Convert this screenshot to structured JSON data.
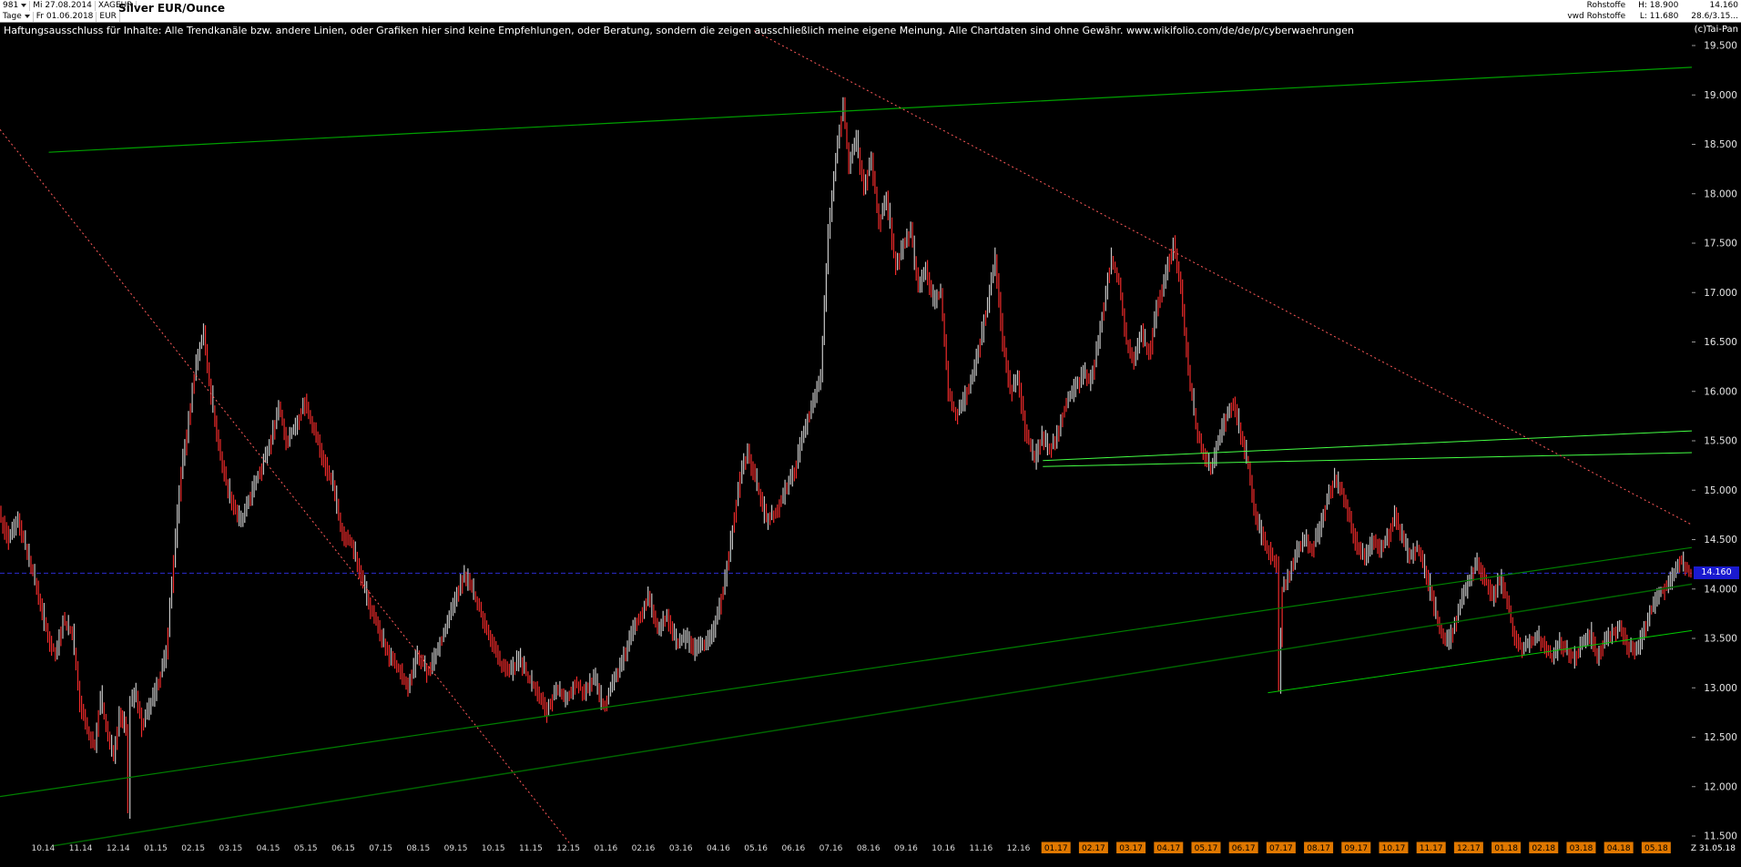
{
  "header": {
    "bar_count": "981",
    "date_start": "Mi 27.08.2014",
    "symbol": "XAGEUR",
    "title": "Silver EUR/Ounce",
    "period": "Tage",
    "date_end": "Fr 01.06.2018",
    "currency": "EUR",
    "group": "Rohstoffe",
    "feed": "vwd Rohstoffe",
    "high_label": "H: 18.900",
    "low_label": "L: 11.680",
    "last_value": "14.160",
    "change_value": "28.6/3.15..."
  },
  "watermark": "(c)Tai-Pan",
  "disclaimer": "Haftungsausschluss für Inhalte: Alle Trendkanäle bzw. andere Linien, oder Grafiken hier sind keine Empfehlungen, oder Beratung, sondern die zeigen ausschließlich meine eigene Meinung. Alle Chartdaten sind ohne Gewähr.  www.wikifolio.com/de/de/p/cyberwaehrungen",
  "chart_data": {
    "type": "line",
    "title": "Silver EUR/Ounce",
    "instrument": "XAGEUR",
    "period": "Tage",
    "date_range": [
      "27.08.2014",
      "31.05.2018"
    ],
    "high": 18.9,
    "low": 11.68,
    "last": 14.16,
    "last_price_label": "14.160",
    "ylim": [
      11.5,
      19.5
    ],
    "x_range": [
      0,
      45.1
    ],
    "x_unit": "months since 27.08.2014",
    "grid": "off",
    "y_axis": {
      "ticks": [
        {
          "value": 19.5,
          "label": "19.500"
        },
        {
          "value": 19.0,
          "label": "19.000"
        },
        {
          "value": 18.5,
          "label": "18.500"
        },
        {
          "value": 18.0,
          "label": "18.000"
        },
        {
          "value": 17.5,
          "label": "17.500"
        },
        {
          "value": 17.0,
          "label": "17.000"
        },
        {
          "value": 16.5,
          "label": "16.500"
        },
        {
          "value": 16.0,
          "label": "16.000"
        },
        {
          "value": 15.5,
          "label": "15.500"
        },
        {
          "value": 15.0,
          "label": "15.000"
        },
        {
          "value": 14.5,
          "label": "14.500"
        },
        {
          "value": 14.0,
          "label": "14.000"
        },
        {
          "value": 13.5,
          "label": "13.500"
        },
        {
          "value": 13.0,
          "label": "13.000"
        },
        {
          "value": 12.5,
          "label": "12.500"
        },
        {
          "value": 12.0,
          "label": "12.000"
        },
        {
          "value": 11.5,
          "label": "11.500"
        }
      ]
    },
    "x_axis": {
      "first_tick_m": 1.15,
      "step": 1,
      "highlight_from": 27,
      "labels": [
        "10.14",
        "11.14",
        "12.14",
        "01.15",
        "02.15",
        "03.15",
        "04.15",
        "05.15",
        "06.15",
        "07.15",
        "08.15",
        "09.15",
        "10.15",
        "11.15",
        "12.15",
        "01.16",
        "02.16",
        "03.16",
        "04.16",
        "05.16",
        "06.16",
        "07.16",
        "08.16",
        "09.16",
        "10.16",
        "11.16",
        "12.16",
        "01.17",
        "02.17",
        "03.17",
        "04.17",
        "05.17",
        "06.17",
        "07.17",
        "08.17",
        "09.17",
        "10.17",
        "11.17",
        "12.17",
        "01.18",
        "02.18",
        "03.18",
        "04.18",
        "05.18"
      ],
      "z_label": "Z  31.05.18"
    },
    "series": [
      {
        "name": "XAGEUR daily bars",
        "points": [
          [
            0.0,
            14.75
          ],
          [
            0.25,
            14.5
          ],
          [
            0.5,
            14.68
          ],
          [
            0.8,
            14.3
          ],
          [
            1.1,
            13.85
          ],
          [
            1.3,
            13.5
          ],
          [
            1.5,
            13.35
          ],
          [
            1.7,
            13.68
          ],
          [
            1.95,
            13.55
          ],
          [
            2.15,
            12.85
          ],
          [
            2.35,
            12.55
          ],
          [
            2.55,
            12.42
          ],
          [
            2.7,
            12.92
          ],
          [
            2.9,
            12.5
          ],
          [
            3.05,
            12.28
          ],
          [
            3.2,
            12.72
          ],
          [
            3.38,
            12.6
          ],
          [
            3.43,
            11.78
          ],
          [
            3.5,
            12.85
          ],
          [
            3.65,
            12.95
          ],
          [
            3.8,
            12.6
          ],
          [
            4.0,
            12.8
          ],
          [
            4.2,
            13.0
          ],
          [
            4.45,
            13.35
          ],
          [
            4.65,
            14.3
          ],
          [
            4.85,
            15.2
          ],
          [
            5.05,
            15.7
          ],
          [
            5.25,
            16.3
          ],
          [
            5.45,
            16.6
          ],
          [
            5.6,
            16.1
          ],
          [
            5.8,
            15.55
          ],
          [
            6.0,
            15.15
          ],
          [
            6.2,
            14.9
          ],
          [
            6.45,
            14.65
          ],
          [
            6.7,
            14.95
          ],
          [
            6.95,
            15.2
          ],
          [
            7.2,
            15.45
          ],
          [
            7.45,
            15.85
          ],
          [
            7.65,
            15.5
          ],
          [
            7.9,
            15.65
          ],
          [
            8.15,
            15.9
          ],
          [
            8.4,
            15.6
          ],
          [
            8.65,
            15.3
          ],
          [
            8.9,
            15.05
          ],
          [
            9.15,
            14.55
          ],
          [
            9.4,
            14.45
          ],
          [
            9.65,
            14.1
          ],
          [
            9.9,
            13.8
          ],
          [
            10.15,
            13.55
          ],
          [
            10.4,
            13.3
          ],
          [
            10.65,
            13.2
          ],
          [
            10.9,
            13.0
          ],
          [
            11.15,
            13.35
          ],
          [
            11.4,
            13.15
          ],
          [
            11.65,
            13.35
          ],
          [
            11.9,
            13.6
          ],
          [
            12.15,
            13.9
          ],
          [
            12.4,
            14.15
          ],
          [
            12.6,
            14.0
          ],
          [
            12.85,
            13.75
          ],
          [
            13.1,
            13.5
          ],
          [
            13.35,
            13.25
          ],
          [
            13.6,
            13.15
          ],
          [
            13.85,
            13.3
          ],
          [
            14.1,
            13.1
          ],
          [
            14.35,
            12.95
          ],
          [
            14.6,
            12.75
          ],
          [
            14.85,
            13.0
          ],
          [
            15.1,
            12.85
          ],
          [
            15.35,
            13.05
          ],
          [
            15.6,
            12.95
          ],
          [
            15.85,
            13.1
          ],
          [
            16.1,
            12.8
          ],
          [
            16.35,
            13.05
          ],
          [
            16.6,
            13.25
          ],
          [
            16.85,
            13.55
          ],
          [
            17.1,
            13.75
          ],
          [
            17.3,
            13.92
          ],
          [
            17.55,
            13.6
          ],
          [
            17.8,
            13.72
          ],
          [
            18.05,
            13.45
          ],
          [
            18.3,
            13.5
          ],
          [
            18.55,
            13.38
          ],
          [
            18.8,
            13.45
          ],
          [
            19.05,
            13.6
          ],
          [
            19.3,
            14.0
          ],
          [
            19.55,
            14.6
          ],
          [
            19.75,
            15.15
          ],
          [
            19.95,
            15.38
          ],
          [
            20.2,
            15.05
          ],
          [
            20.45,
            14.7
          ],
          [
            20.7,
            14.78
          ],
          [
            20.95,
            15.0
          ],
          [
            21.2,
            15.2
          ],
          [
            21.45,
            15.6
          ],
          [
            21.7,
            15.9
          ],
          [
            21.9,
            16.15
          ],
          [
            22.1,
            17.6
          ],
          [
            22.3,
            18.35
          ],
          [
            22.5,
            18.9
          ],
          [
            22.65,
            18.3
          ],
          [
            22.85,
            18.55
          ],
          [
            23.05,
            18.05
          ],
          [
            23.25,
            18.35
          ],
          [
            23.45,
            17.7
          ],
          [
            23.65,
            17.95
          ],
          [
            23.9,
            17.25
          ],
          [
            24.1,
            17.5
          ],
          [
            24.3,
            17.62
          ],
          [
            24.5,
            17.05
          ],
          [
            24.7,
            17.25
          ],
          [
            24.9,
            16.9
          ],
          [
            25.1,
            17.0
          ],
          [
            25.3,
            16.0
          ],
          [
            25.5,
            15.75
          ],
          [
            25.7,
            15.9
          ],
          [
            25.9,
            16.1
          ],
          [
            26.1,
            16.4
          ],
          [
            26.35,
            16.9
          ],
          [
            26.55,
            17.35
          ],
          [
            26.75,
            16.5
          ],
          [
            26.95,
            16.0
          ],
          [
            27.15,
            16.15
          ],
          [
            27.35,
            15.6
          ],
          [
            27.6,
            15.3
          ],
          [
            27.8,
            15.55
          ],
          [
            28.0,
            15.4
          ],
          [
            28.2,
            15.55
          ],
          [
            28.45,
            15.9
          ],
          [
            28.7,
            16.05
          ],
          [
            28.9,
            16.2
          ],
          [
            29.1,
            16.1
          ],
          [
            29.3,
            16.5
          ],
          [
            29.5,
            17.0
          ],
          [
            29.65,
            17.35
          ],
          [
            29.85,
            17.1
          ],
          [
            30.05,
            16.5
          ],
          [
            30.25,
            16.3
          ],
          [
            30.45,
            16.6
          ],
          [
            30.65,
            16.35
          ],
          [
            30.85,
            16.85
          ],
          [
            31.1,
            17.2
          ],
          [
            31.3,
            17.5
          ],
          [
            31.5,
            17.05
          ],
          [
            31.7,
            16.2
          ],
          [
            31.9,
            15.65
          ],
          [
            32.1,
            15.35
          ],
          [
            32.3,
            15.2
          ],
          [
            32.5,
            15.5
          ],
          [
            32.7,
            15.75
          ],
          [
            32.9,
            15.9
          ],
          [
            33.1,
            15.55
          ],
          [
            33.3,
            15.25
          ],
          [
            33.5,
            14.7
          ],
          [
            33.7,
            14.5
          ],
          [
            33.9,
            14.35
          ],
          [
            34.05,
            14.25
          ],
          [
            34.12,
            13.02
          ],
          [
            34.2,
            14.0
          ],
          [
            34.4,
            14.15
          ],
          [
            34.6,
            14.4
          ],
          [
            34.8,
            14.5
          ],
          [
            35.0,
            14.42
          ],
          [
            35.2,
            14.6
          ],
          [
            35.4,
            14.9
          ],
          [
            35.6,
            15.12
          ],
          [
            35.8,
            15.0
          ],
          [
            36.0,
            14.7
          ],
          [
            36.2,
            14.42
          ],
          [
            36.4,
            14.3
          ],
          [
            36.6,
            14.5
          ],
          [
            36.8,
            14.4
          ],
          [
            37.0,
            14.52
          ],
          [
            37.2,
            14.75
          ],
          [
            37.4,
            14.5
          ],
          [
            37.6,
            14.32
          ],
          [
            37.8,
            14.42
          ],
          [
            38.0,
            14.2
          ],
          [
            38.2,
            13.9
          ],
          [
            38.4,
            13.6
          ],
          [
            38.6,
            13.45
          ],
          [
            38.8,
            13.62
          ],
          [
            39.0,
            13.9
          ],
          [
            39.2,
            14.1
          ],
          [
            39.4,
            14.28
          ],
          [
            39.6,
            14.1
          ],
          [
            39.8,
            13.92
          ],
          [
            40.0,
            14.1
          ],
          [
            40.2,
            13.88
          ],
          [
            40.4,
            13.5
          ],
          [
            40.6,
            13.38
          ],
          [
            40.8,
            13.48
          ],
          [
            41.0,
            13.52
          ],
          [
            41.2,
            13.42
          ],
          [
            41.4,
            13.3
          ],
          [
            41.6,
            13.46
          ],
          [
            41.8,
            13.36
          ],
          [
            42.0,
            13.3
          ],
          [
            42.2,
            13.46
          ],
          [
            42.4,
            13.56
          ],
          [
            42.6,
            13.32
          ],
          [
            42.8,
            13.5
          ],
          [
            43.0,
            13.56
          ],
          [
            43.2,
            13.62
          ],
          [
            43.4,
            13.42
          ],
          [
            43.6,
            13.36
          ],
          [
            43.8,
            13.52
          ],
          [
            44.0,
            13.78
          ],
          [
            44.2,
            13.92
          ],
          [
            44.4,
            14.02
          ],
          [
            44.6,
            14.12
          ],
          [
            44.8,
            14.3
          ],
          [
            44.95,
            14.22
          ],
          [
            45.1,
            14.16
          ]
        ]
      }
    ],
    "trend_lines": [
      {
        "name": "upper-channel",
        "m1": 1.3,
        "p1": 18.42,
        "m2": 45.1,
        "p2": 19.28,
        "color": "#00a000",
        "width": 1.2
      },
      {
        "name": "long-support",
        "m1": 0,
        "p1": 11.9,
        "m2": 45.1,
        "p2": 14.42,
        "color": "#008000",
        "width": 1.2
      },
      {
        "name": "steep-support",
        "m1": 1.4,
        "p1": 11.4,
        "m2": 45.1,
        "p2": 14.05,
        "color": "#006400",
        "width": 1.5
      },
      {
        "name": "recent-support",
        "m1": 33.8,
        "p1": 12.95,
        "m2": 45.1,
        "p2": 13.58,
        "color": "#00c800",
        "width": 1
      },
      {
        "name": "light-resistance-1",
        "m1": 27.8,
        "p1": 15.3,
        "m2": 45.1,
        "p2": 15.6,
        "color": "#44ff44",
        "width": 1
      },
      {
        "name": "light-resistance-2",
        "m1": 27.8,
        "p1": 15.24,
        "m2": 45.1,
        "p2": 15.38,
        "color": "#44ff44",
        "width": 1
      },
      {
        "name": "downtrend-left",
        "m1": 0,
        "p1": 18.65,
        "m2": 15.2,
        "p2": 11.42,
        "color": "#ff5a5a",
        "width": 1,
        "dash": "2,3"
      },
      {
        "name": "downtrend-right",
        "m1": 20.1,
        "p1": 19.65,
        "m2": 45.1,
        "p2": 14.65,
        "color": "#ff5a5a",
        "width": 1,
        "dash": "2,3"
      }
    ],
    "colors": {
      "up": "#c6c6c6",
      "down": "#ee2a2a",
      "last_line": "#2b2bd0",
      "badge_bg": "#1a1ad0",
      "highlight": "#e07800",
      "axis_text": "#e4e4e4"
    }
  }
}
